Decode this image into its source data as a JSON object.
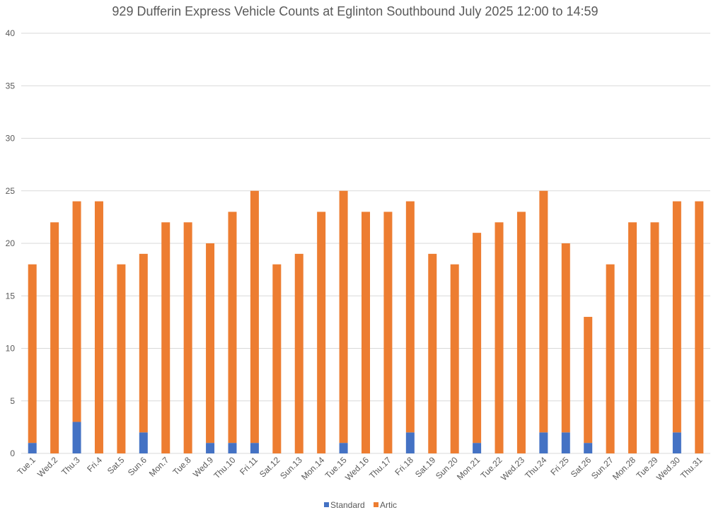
{
  "chart_data": {
    "type": "bar",
    "stacked": true,
    "title": "929 Dufferin Express Vehicle Counts at Eglinton Southbound July 2025  12:00 to 14:59",
    "xlabel": "",
    "ylabel": "",
    "ylim": [
      0,
      40
    ],
    "yticks": [
      "0",
      "5",
      "10",
      "15",
      "20",
      "25",
      "30",
      "35",
      "40"
    ],
    "grid": true,
    "legend_position": "bottom",
    "categories": [
      "Tue.1",
      "Wed.2",
      "Thu.3",
      "Fri.4",
      "Sat.5",
      "Sun.6",
      "Mon.7",
      "Tue.8",
      "Wed.9",
      "Thu.10",
      "Fri.11",
      "Sat.12",
      "Sun.13",
      "Mon.14",
      "Tue.15",
      "Wed.16",
      "Thu.17",
      "Fri.18",
      "Sat.19",
      "Sun.20",
      "Mon.21",
      "Tue.22",
      "Wed.23",
      "Thu.24",
      "Fri.25",
      "Sat.26",
      "Sun.27",
      "Mon.28",
      "Tue.29",
      "Wed.30",
      "Thu.31"
    ],
    "series": [
      {
        "name": "Standard",
        "color": "#4472c4",
        "values": [
          1,
          0,
          3,
          0,
          0,
          2,
          0,
          0,
          1,
          1,
          1,
          0,
          0,
          0,
          1,
          0,
          0,
          2,
          0,
          0,
          1,
          0,
          0,
          2,
          2,
          1,
          0,
          0,
          0,
          2,
          0
        ]
      },
      {
        "name": "Artic",
        "color": "#ed7d31",
        "values": [
          17,
          22,
          21,
          24,
          18,
          17,
          22,
          22,
          19,
          22,
          24,
          18,
          19,
          23,
          24,
          23,
          23,
          22,
          19,
          18,
          20,
          22,
          23,
          23,
          18,
          12,
          18,
          22,
          22,
          22,
          24
        ]
      }
    ]
  }
}
